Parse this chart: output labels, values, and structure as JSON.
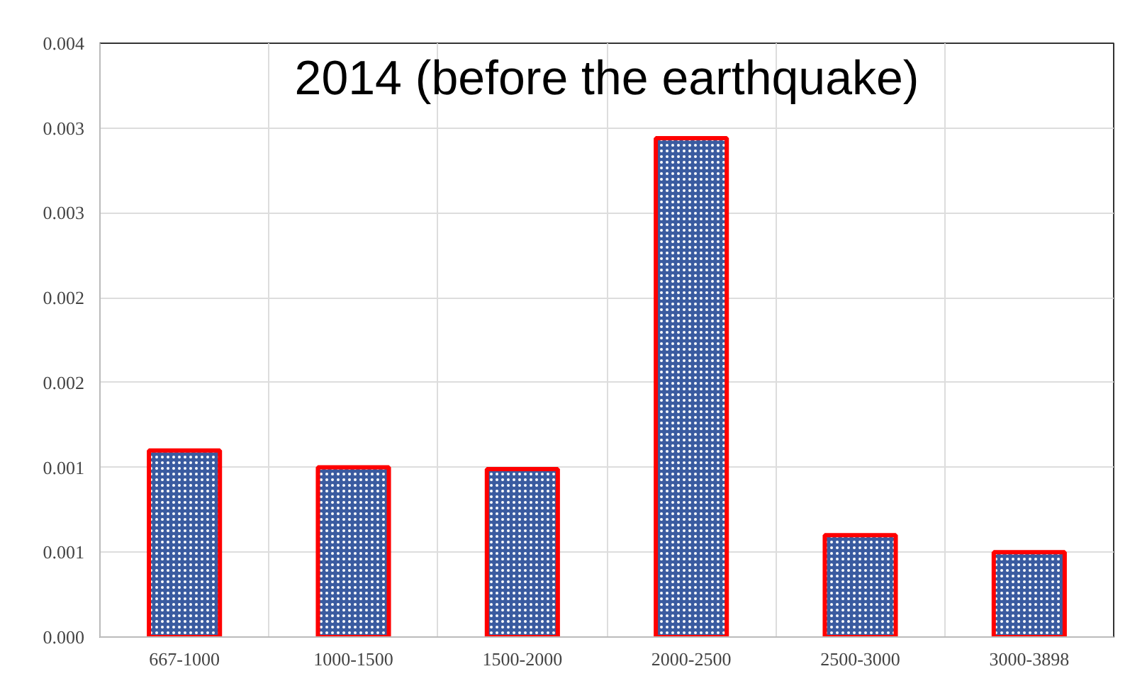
{
  "chart_data": {
    "type": "bar",
    "title": "2014 (before the earthquake)",
    "categories": [
      "667-1000",
      "1000-1500",
      "1500-2000",
      "2000-2500",
      "2500-3000",
      "3000-3898"
    ],
    "values": [
      0.0011,
      0.001,
      0.00099,
      0.00294,
      0.0006,
      0.0005
    ],
    "color": "#3a5ba0",
    "ylim": [
      0,
      0.0035
    ],
    "yticks": [
      {
        "value": 0,
        "label": "0.000"
      },
      {
        "value": 0.0005,
        "label": "0.001"
      },
      {
        "value": 0.001,
        "label": "0.001"
      },
      {
        "value": 0.0015,
        "label": "0.002"
      },
      {
        "value": 0.002,
        "label": "0.002"
      },
      {
        "value": 0.0025,
        "label": "0.003"
      },
      {
        "value": 0.003,
        "label": "0.003"
      },
      {
        "value": 0.0035,
        "label": "0.004"
      }
    ],
    "grid": true
  }
}
